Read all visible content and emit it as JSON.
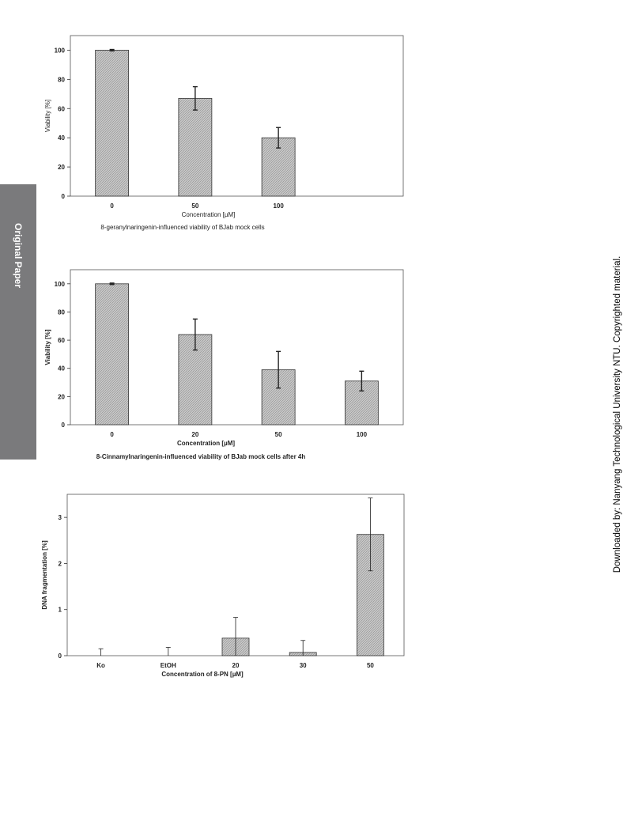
{
  "side_tab": {
    "label": "Original Paper",
    "color": "#7a7a7c"
  },
  "side_note": "Downloaded by: Nanyang Technological University NTU. Copyrighted material.",
  "bar_fill_color": "#c8c8c8",
  "chart_data": [
    {
      "type": "bar",
      "categories": [
        "0",
        "50",
        "100"
      ],
      "values": [
        100,
        67,
        40
      ],
      "errors": [
        0.5,
        8,
        7
      ],
      "xlabel": "Concentration [µM]",
      "ylabel": "Viability [%]",
      "caption": "8-geranylnaringenin-influenced viability of BJab mock cells",
      "ylim": [
        0,
        110
      ],
      "yticks": [
        0,
        20,
        40,
        60,
        80,
        100
      ],
      "grid": false
    },
    {
      "type": "bar",
      "categories": [
        "0",
        "20",
        "50",
        "100"
      ],
      "values": [
        100,
        64,
        39,
        31
      ],
      "errors": [
        0.5,
        11,
        13,
        7
      ],
      "xlabel": "Concentration [µM]",
      "ylabel": "Viability [%]",
      "caption": "8-Cinnamylnaringenin-influenced viability of BJab mock cells after 4h",
      "ylim": [
        0,
        110
      ],
      "yticks": [
        0,
        20,
        40,
        60,
        80,
        100
      ],
      "grid": false
    },
    {
      "type": "bar",
      "categories": [
        "Ko",
        "EtOH",
        "20",
        "30",
        "50"
      ],
      "values": [
        0,
        0,
        0.38,
        0.07,
        2.63
      ],
      "errors": [
        0.15,
        0.18,
        0.45,
        0.26,
        0.79
      ],
      "xlabel": "Concentration of 8-PN [µM]",
      "ylabel": "DNA fragmentation [%]",
      "caption": "",
      "ylim": [
        0,
        3.5
      ],
      "yticks": [
        0,
        1,
        2,
        3
      ],
      "grid": false
    }
  ]
}
